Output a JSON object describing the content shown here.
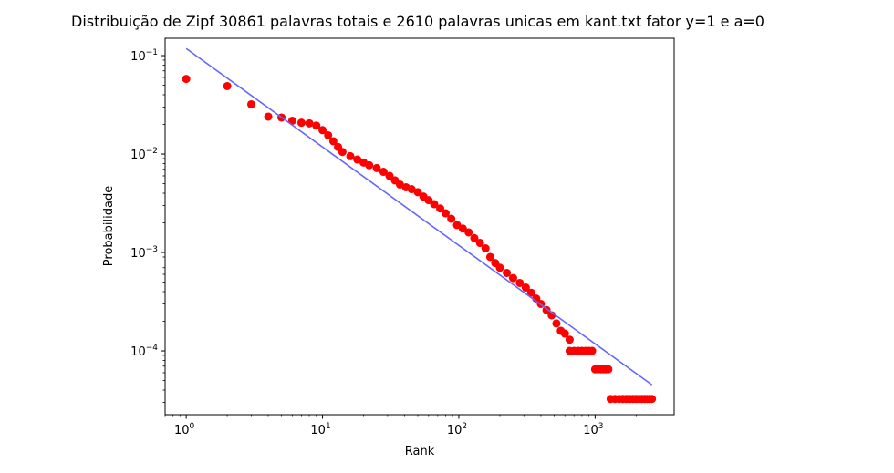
{
  "chart_data": {
    "type": "scatter",
    "title": "Distribuição de Zipf 30861 palavras totais e 2610 palavras unicas em kant.txt fator y=1 e a=0",
    "xlabel": "Rank",
    "ylabel": "Probabilidade",
    "xscale": "log",
    "yscale": "log",
    "xlim": [
      0.7,
      3800
    ],
    "ylim": [
      2.25e-05,
      0.15
    ],
    "grid": false,
    "x_ticks": [
      {
        "value": 1,
        "base": "10",
        "exp": "0"
      },
      {
        "value": 10,
        "base": "10",
        "exp": "1"
      },
      {
        "value": 100,
        "base": "10",
        "exp": "2"
      },
      {
        "value": 1000,
        "base": "10",
        "exp": "3"
      }
    ],
    "y_ticks": [
      {
        "value": 0.1,
        "base": "10",
        "exp": "−1"
      },
      {
        "value": 0.01,
        "base": "10",
        "exp": "−2"
      },
      {
        "value": 0.001,
        "base": "10",
        "exp": "−3"
      },
      {
        "value": 0.0001,
        "base": "10",
        "exp": "−4"
      }
    ],
    "series": [
      {
        "type": "scatter",
        "color": "#ff0000",
        "points": [
          [
            1,
            0.058
          ],
          [
            2,
            0.049
          ],
          [
            3,
            0.032
          ],
          [
            4,
            0.024
          ],
          [
            5,
            0.0235
          ],
          [
            6,
            0.0218
          ],
          [
            7,
            0.0208
          ],
          [
            8,
            0.0205
          ],
          [
            9,
            0.0195
          ],
          [
            10,
            0.0175
          ],
          [
            11,
            0.0155
          ],
          [
            12,
            0.0135
          ],
          [
            13,
            0.0118
          ],
          [
            14,
            0.0105
          ],
          [
            16,
            0.0095
          ],
          [
            18,
            0.0088
          ],
          [
            20,
            0.0082
          ],
          [
            22,
            0.0077
          ],
          [
            25,
            0.0072
          ],
          [
            28,
            0.0066
          ],
          [
            31,
            0.006
          ],
          [
            34,
            0.0054
          ],
          [
            37,
            0.0049
          ],
          [
            41,
            0.0046
          ],
          [
            45,
            0.0044
          ],
          [
            50,
            0.0041
          ],
          [
            55,
            0.0037
          ],
          [
            60,
            0.0034
          ],
          [
            66,
            0.0031
          ],
          [
            73,
            0.0028
          ],
          [
            80,
            0.0025
          ],
          [
            88,
            0.0022
          ],
          [
            97,
            0.0019
          ],
          [
            107,
            0.00175
          ],
          [
            118,
            0.0016
          ],
          [
            130,
            0.0014
          ],
          [
            143,
            0.00125
          ],
          [
            157,
            0.0011
          ],
          [
            170,
            0.0009
          ],
          [
            185,
            0.00078
          ],
          [
            200,
            0.0007
          ],
          [
            225,
            0.00062
          ],
          [
            250,
            0.00055
          ],
          [
            280,
            0.00049
          ],
          [
            310,
            0.00044
          ],
          [
            340,
            0.00039
          ],
          [
            370,
            0.00034
          ],
          [
            400,
            0.0003
          ],
          [
            440,
            0.00026
          ],
          [
            480,
            0.00023
          ],
          [
            520,
            0.00019
          ],
          [
            560,
            0.00016
          ],
          [
            600,
            0.00015
          ],
          [
            650,
            0.00013
          ],
          [
            650,
            0.0001
          ],
          [
            700,
            0.0001
          ],
          [
            750,
            0.0001
          ],
          [
            800,
            0.0001
          ],
          [
            850,
            0.0001
          ],
          [
            900,
            0.0001
          ],
          [
            950,
            0.0001
          ],
          [
            1000,
            6.5e-05
          ],
          [
            1050,
            6.5e-05
          ],
          [
            1100,
            6.5e-05
          ],
          [
            1150,
            6.5e-05
          ],
          [
            1200,
            6.5e-05
          ],
          [
            1250,
            6.5e-05
          ],
          [
            1300,
            3.25e-05
          ],
          [
            1400,
            3.25e-05
          ],
          [
            1500,
            3.25e-05
          ],
          [
            1600,
            3.25e-05
          ],
          [
            1700,
            3.25e-05
          ],
          [
            1800,
            3.25e-05
          ],
          [
            1900,
            3.25e-05
          ],
          [
            2000,
            3.25e-05
          ],
          [
            2100,
            3.25e-05
          ],
          [
            2200,
            3.25e-05
          ],
          [
            2300,
            3.25e-05
          ],
          [
            2400,
            3.25e-05
          ],
          [
            2500,
            3.25e-05
          ],
          [
            2610,
            3.25e-05
          ]
        ]
      },
      {
        "type": "line",
        "color": "#6666ff",
        "points": [
          [
            1,
            0.118
          ],
          [
            2610,
            4.52e-05
          ]
        ]
      }
    ]
  }
}
